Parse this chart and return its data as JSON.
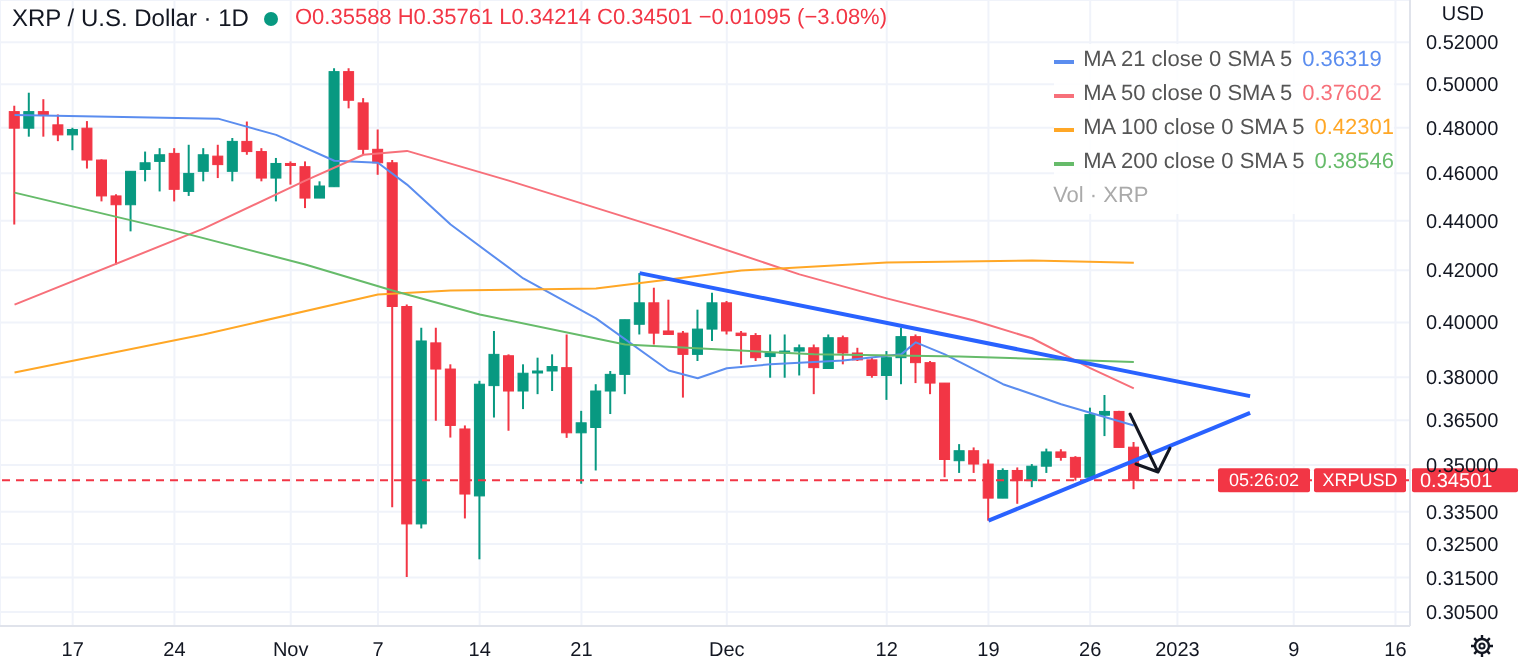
{
  "chart_data": {
    "type": "candlestick",
    "title": "XRP / U.S. Dollar · 1D",
    "subtitle": "O0.35588 H0.35761 L0.34214 C0.34501 −0.01095 (−3.08%)",
    "ylabel": "USD",
    "x": [
      "2022-10-13",
      "2022-10-14",
      "2022-10-15",
      "2022-10-16",
      "2022-10-17",
      "2022-10-18",
      "2022-10-19",
      "2022-10-20",
      "2022-10-21",
      "2022-10-22",
      "2022-10-23",
      "2022-10-24",
      "2022-10-25",
      "2022-10-26",
      "2022-10-27",
      "2022-10-28",
      "2022-10-29",
      "2022-10-30",
      "2022-10-31",
      "2022-11-01",
      "2022-11-02",
      "2022-11-03",
      "2022-11-04",
      "2022-11-05",
      "2022-11-06",
      "2022-11-07",
      "2022-11-08",
      "2022-11-09",
      "2022-11-10",
      "2022-11-11",
      "2022-11-12",
      "2022-11-13",
      "2022-11-14",
      "2022-11-15",
      "2022-11-16",
      "2022-11-17",
      "2022-11-18",
      "2022-11-19",
      "2022-11-20",
      "2022-11-21",
      "2022-11-22",
      "2022-11-23",
      "2022-11-24",
      "2022-11-25",
      "2022-11-26",
      "2022-11-27",
      "2022-11-28",
      "2022-11-29",
      "2022-11-30",
      "2022-12-01",
      "2022-12-02",
      "2022-12-03",
      "2022-12-04",
      "2022-12-05",
      "2022-12-06",
      "2022-12-07",
      "2022-12-08",
      "2022-12-09",
      "2022-12-10",
      "2022-12-11",
      "2022-12-12",
      "2022-12-13",
      "2022-12-14",
      "2022-12-15",
      "2022-12-16",
      "2022-12-17",
      "2022-12-18",
      "2022-12-19",
      "2022-12-20",
      "2022-12-21",
      "2022-12-22",
      "2022-12-23",
      "2022-12-24",
      "2022-12-25",
      "2022-12-26",
      "2022-12-27",
      "2022-12-28",
      "2022-12-29"
    ],
    "ohlc": [
      [
        0.4873,
        0.49,
        0.4384,
        0.4798
      ],
      [
        0.4798,
        0.496,
        0.476,
        0.4873
      ],
      [
        0.4873,
        0.493,
        0.476,
        0.486
      ],
      [
        0.4813,
        0.486,
        0.474,
        0.4768
      ],
      [
        0.4768,
        0.48,
        0.47,
        0.4792
      ],
      [
        0.4798,
        0.483,
        0.462,
        0.4657
      ],
      [
        0.4657,
        0.466,
        0.448,
        0.4503
      ],
      [
        0.4503,
        0.451,
        0.4223,
        0.4466
      ],
      [
        0.4466,
        0.4608,
        0.4356,
        0.4608
      ],
      [
        0.4616,
        0.4694,
        0.4565,
        0.4645
      ],
      [
        0.4651,
        0.4709,
        0.4522,
        0.468
      ],
      [
        0.4686,
        0.4709,
        0.448,
        0.4531
      ],
      [
        0.4522,
        0.4724,
        0.4503,
        0.4599
      ],
      [
        0.4608,
        0.4709,
        0.4565,
        0.468
      ],
      [
        0.4674,
        0.4724,
        0.4579,
        0.4637
      ],
      [
        0.4608,
        0.4754,
        0.4565,
        0.4739
      ],
      [
        0.4739,
        0.4828,
        0.468,
        0.4694
      ],
      [
        0.4694,
        0.4709,
        0.4565,
        0.4579
      ],
      [
        0.4579,
        0.4666,
        0.448,
        0.4642
      ],
      [
        0.4642,
        0.4651,
        0.4551,
        0.4634
      ],
      [
        0.4628,
        0.4651,
        0.4452,
        0.4494
      ],
      [
        0.4494,
        0.4565,
        0.4494,
        0.4545
      ],
      [
        0.4542,
        0.5075,
        0.4542,
        0.5059
      ],
      [
        0.5059,
        0.5075,
        0.4888,
        0.4925
      ],
      [
        0.4913,
        0.4935,
        0.468,
        0.4704
      ],
      [
        0.4704,
        0.4792,
        0.4593,
        0.4645
      ],
      [
        0.4645,
        0.4657,
        0.3364,
        0.406
      ],
      [
        0.406,
        0.4068,
        0.3151,
        0.3312
      ],
      [
        0.3312,
        0.398,
        0.3298,
        0.3931
      ],
      [
        0.3924,
        0.398,
        0.3648,
        0.3829
      ],
      [
        0.3829,
        0.3846,
        0.3591,
        0.3632
      ],
      [
        0.362,
        0.3632,
        0.3329,
        0.3406
      ],
      [
        0.34,
        0.3787,
        0.3204,
        0.3775
      ],
      [
        0.377,
        0.3968,
        0.3659,
        0.3882
      ],
      [
        0.3877,
        0.3882,
        0.3614,
        0.3751
      ],
      [
        0.3751,
        0.3846,
        0.3688,
        0.3814
      ],
      [
        0.3818,
        0.387,
        0.374,
        0.3822
      ],
      [
        0.3822,
        0.3882,
        0.3751,
        0.3838
      ],
      [
        0.3834,
        0.3955,
        0.359,
        0.3607
      ],
      [
        0.3607,
        0.3682,
        0.3439,
        0.3641
      ],
      [
        0.3625,
        0.3775,
        0.3482,
        0.3751
      ],
      [
        0.3751,
        0.3822,
        0.3671,
        0.381
      ],
      [
        0.381,
        0.401,
        0.374,
        0.401
      ],
      [
        0.3993,
        0.4189,
        0.3955,
        0.4074
      ],
      [
        0.4074,
        0.4132,
        0.3918,
        0.396
      ],
      [
        0.3968,
        0.4086,
        0.3955,
        0.3955
      ],
      [
        0.396,
        0.3968,
        0.3728,
        0.3882
      ],
      [
        0.3882,
        0.4048,
        0.3858,
        0.3975
      ],
      [
        0.3975,
        0.4113,
        0.3931,
        0.4074
      ],
      [
        0.4074,
        0.4081,
        0.3955,
        0.3968
      ],
      [
        0.396,
        0.3968,
        0.3846,
        0.3951
      ],
      [
        0.3951,
        0.396,
        0.3858,
        0.387
      ],
      [
        0.3874,
        0.3955,
        0.3798,
        0.3888
      ],
      [
        0.3891,
        0.3955,
        0.3798,
        0.3894
      ],
      [
        0.3894,
        0.3918,
        0.3806,
        0.3906
      ],
      [
        0.3906,
        0.3918,
        0.374,
        0.3834
      ],
      [
        0.3831,
        0.3955,
        0.3831,
        0.3943
      ],
      [
        0.3943,
        0.3951,
        0.3846,
        0.3887
      ],
      [
        0.3887,
        0.3906,
        0.3858,
        0.3862
      ],
      [
        0.3862,
        0.387,
        0.3798,
        0.3806
      ],
      [
        0.3806,
        0.3894,
        0.372,
        0.387
      ],
      [
        0.387,
        0.398,
        0.3775,
        0.3947
      ],
      [
        0.3947,
        0.3955,
        0.3779,
        0.3852
      ],
      [
        0.3852,
        0.3858,
        0.374,
        0.3779
      ],
      [
        0.3779,
        0.3779,
        0.346,
        0.3518
      ],
      [
        0.3514,
        0.3569,
        0.3474,
        0.3547
      ],
      [
        0.3547,
        0.3558,
        0.3474,
        0.3503
      ],
      [
        0.3503,
        0.3518,
        0.3322,
        0.3393
      ],
      [
        0.3393,
        0.3489,
        0.3393,
        0.3482
      ],
      [
        0.3482,
        0.3492,
        0.3375,
        0.3449
      ],
      [
        0.3449,
        0.3503,
        0.3428,
        0.3496
      ],
      [
        0.3496,
        0.3554,
        0.3474,
        0.3543
      ],
      [
        0.3543,
        0.3552,
        0.3514,
        0.3525
      ],
      [
        0.3525,
        0.3529,
        0.3449,
        0.346
      ],
      [
        0.346,
        0.3693,
        0.3457,
        0.3669
      ],
      [
        0.3667,
        0.3737,
        0.3596,
        0.368
      ],
      [
        0.368,
        0.3682,
        0.3558,
        0.3558
      ],
      [
        0.35588,
        0.35761,
        0.34214,
        0.34501
      ]
    ],
    "colors": [
      "#f23645",
      "#089981",
      "#f23645",
      "#f23645",
      "#089981",
      "#f23645",
      "#f23645",
      "#f23645",
      "#089981",
      "#089981",
      "#089981",
      "#f23645",
      "#089981",
      "#089981",
      "#f23645",
      "#089981",
      "#f23645",
      "#f23645",
      "#089981",
      "#f23645",
      "#f23645",
      "#089981",
      "#089981",
      "#f23645",
      "#f23645",
      "#f23645",
      "#f23645",
      "#f23645",
      "#089981",
      "#f23645",
      "#f23645",
      "#f23645",
      "#089981",
      "#089981",
      "#f23645",
      "#089981",
      "#089981",
      "#089981",
      "#f23645",
      "#089981",
      "#089981",
      "#089981",
      "#089981",
      "#089981",
      "#f23645",
      "#f23645",
      "#f23645",
      "#089981",
      "#089981",
      "#f23645",
      "#f23645",
      "#f23645",
      "#089981",
      "#089981",
      "#089981",
      "#f23645",
      "#089981",
      "#f23645",
      "#f23645",
      "#f23645",
      "#089981",
      "#089981",
      "#f23645",
      "#f23645",
      "#f23645",
      "#089981",
      "#f23645",
      "#f23645",
      "#089981",
      "#f23645",
      "#089981",
      "#089981",
      "#f23645",
      "#f23645",
      "#089981",
      "#089981",
      "#f23645",
      "#f23645"
    ],
    "series": [
      {
        "type": "line",
        "name": "MA 21 close 0 SMA 5",
        "color": "#5b8def",
        "x": [
          "2022-10-13",
          "2022-10-27",
          "2022-10-31",
          "2022-11-04",
          "2022-11-07",
          "2022-11-09",
          "2022-11-12",
          "2022-11-17",
          "2022-11-22",
          "2022-11-27",
          "2022-11-29",
          "2022-12-01",
          "2022-12-04",
          "2022-12-09",
          "2022-12-13",
          "2022-12-14",
          "2022-12-16",
          "2022-12-20",
          "2022-12-24",
          "2022-12-29"
        ],
        "values": [
          0.4858,
          0.4841,
          0.4768,
          0.4654,
          0.4645,
          0.4551,
          0.4384,
          0.4168,
          0.4015,
          0.3824,
          0.3796,
          0.3832,
          0.3846,
          0.386,
          0.3882,
          0.3926,
          0.3882,
          0.3775,
          0.3705,
          0.36319
        ]
      },
      {
        "type": "line",
        "name": "MA 50 close 0 SMA 5",
        "color": "#f7707a",
        "x": [
          "2022-10-13",
          "2022-10-26",
          "2022-11-02",
          "2022-11-06",
          "2022-11-09",
          "2022-11-16",
          "2022-11-27",
          "2022-12-06",
          "2022-12-12",
          "2022-12-18",
          "2022-12-22",
          "2022-12-26",
          "2022-12-29"
        ],
        "values": [
          0.4067,
          0.4367,
          0.4568,
          0.468,
          0.4697,
          0.4568,
          0.4359,
          0.4184,
          0.4091,
          0.4007,
          0.3941,
          0.3832,
          0.37602
        ]
      },
      {
        "type": "line",
        "name": "MA 100 close 0 SMA 5",
        "color": "#ffa726",
        "x": [
          "2022-10-13",
          "2022-10-26",
          "2022-11-07",
          "2022-11-12",
          "2022-11-22",
          "2022-12-02",
          "2022-12-12",
          "2022-12-22",
          "2022-12-29"
        ],
        "values": [
          0.3817,
          0.3955,
          0.4106,
          0.4121,
          0.4129,
          0.4199,
          0.4231,
          0.4239,
          0.42301
        ]
      },
      {
        "type": "line",
        "name": "MA 200 close 0 SMA 5",
        "color": "#66bb6a",
        "x": [
          "2022-10-13",
          "2022-10-24",
          "2022-11-02",
          "2022-11-08",
          "2022-11-14",
          "2022-11-24",
          "2022-12-07",
          "2022-12-17",
          "2022-12-29"
        ],
        "values": [
          0.4517,
          0.4359,
          0.4223,
          0.4121,
          0.403,
          0.3918,
          0.3882,
          0.3874,
          0.38546
        ]
      },
      {
        "type": "line",
        "color": "#2962ff",
        "x": [
          "2022-11-25",
          "2023-01-06"
        ],
        "values": [
          0.4189,
          0.3733
        ]
      },
      {
        "type": "line",
        "color": "#2962ff",
        "x": [
          "2022-12-19",
          "2023-01-06"
        ],
        "values": [
          0.3322,
          0.3675
        ]
      }
    ],
    "xlim": [
      "2022-10-12",
      "2023-01-17"
    ],
    "xticks": [
      {
        "value": "2022-10-17",
        "label": "17"
      },
      {
        "value": "2022-10-24",
        "label": "24"
      },
      {
        "value": "2022-11-01",
        "label": "Nov"
      },
      {
        "value": "2022-11-07",
        "label": "7"
      },
      {
        "value": "2022-11-14",
        "label": "14"
      },
      {
        "value": "2022-11-21",
        "label": "21"
      },
      {
        "value": "2022-12-01",
        "label": "Dec"
      },
      {
        "value": "2022-12-12",
        "label": "12"
      },
      {
        "value": "2022-12-19",
        "label": "19"
      },
      {
        "value": "2022-12-26",
        "label": "26"
      },
      {
        "value": "2023-01-01",
        "label": "2023"
      },
      {
        "value": "2023-01-09",
        "label": "9"
      },
      {
        "value": "2023-01-16",
        "label": "16"
      }
    ],
    "ylim": [
      0.301,
      0.541
    ],
    "log": true,
    "yticks": [
      {
        "value": 0.305,
        "label": "0.30500"
      },
      {
        "value": 0.315,
        "label": "0.31500"
      },
      {
        "value": 0.325,
        "label": "0.32500"
      },
      {
        "value": 0.335,
        "label": "0.33500"
      },
      {
        "value": 0.35,
        "label": "0.35000"
      },
      {
        "value": 0.365,
        "label": "0.36500"
      },
      {
        "value": 0.38,
        "label": "0.38000"
      },
      {
        "value": 0.4,
        "label": "0.40000"
      },
      {
        "value": 0.42,
        "label": "0.42000"
      },
      {
        "value": 0.44,
        "label": "0.44000"
      },
      {
        "value": 0.46,
        "label": "0.46000"
      },
      {
        "value": 0.48,
        "label": "0.48000"
      },
      {
        "value": 0.5,
        "label": "0.50000"
      },
      {
        "value": 0.52,
        "label": "0.52000"
      }
    ],
    "ref_lines": [
      {
        "axis": "y",
        "value": 0.34501,
        "label": "XRPUSD",
        "color": "#f23645",
        "line_style": "dashed"
      }
    ],
    "annotations": [
      "Vol · XRP",
      "05:26:02",
      "0.34501",
      "0.36319",
      "0.37602",
      "0.42301",
      "0.38546"
    ],
    "grid": true,
    "legend": "top right",
    "marker": "none",
    "line_style": "solid"
  }
}
